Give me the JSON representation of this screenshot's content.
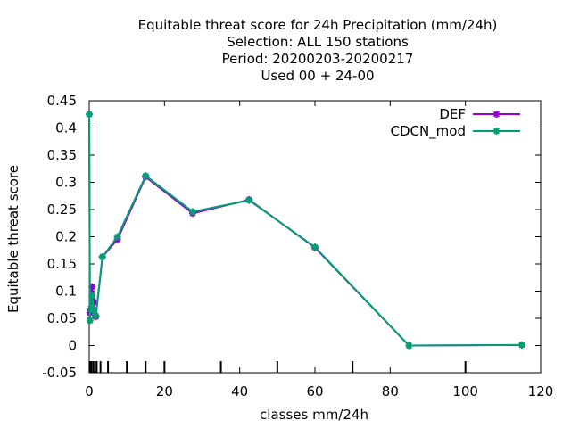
{
  "chart_data": {
    "type": "line",
    "title_lines": [
      "Equitable threat score  for 24h Precipitation (mm/24h)",
      "Selection: ALL    150 stations",
      "Period: 20200203-20200217",
      "Used  00 + 24-00"
    ],
    "xlabel": "classes mm/24h",
    "ylabel": "Equitable threat score",
    "xlim": [
      0,
      120
    ],
    "ylim": [
      -0.05,
      0.45
    ],
    "xticks": [
      0,
      20,
      40,
      60,
      80,
      100,
      120
    ],
    "xtick_labels": [
      "0",
      "20",
      "40",
      "60",
      "80",
      "100",
      "120"
    ],
    "yticks": [
      -0.05,
      0,
      0.05,
      0.1,
      0.15,
      0.2,
      0.25,
      0.3,
      0.35,
      0.4,
      0.45
    ],
    "ytick_labels": [
      "-0.05",
      "0",
      "0.05",
      "0.1",
      "0.15",
      "0.2",
      "0.25",
      "0.3",
      "0.35",
      "0.4",
      "0.45"
    ],
    "class_marks": [
      0.1,
      0.3,
      0.5,
      1,
      1.5,
      2,
      3,
      5,
      10,
      15,
      20,
      35,
      50,
      70,
      100
    ],
    "legend_position": "top-right",
    "grid": false,
    "series": [
      {
        "name": "DEF",
        "color": "#9400d3",
        "x": [
          0,
          0.2,
          0.4,
          0.75,
          1.25,
          1.75,
          3.5,
          7.5,
          15,
          27.5,
          42.5,
          60,
          85,
          115
        ],
        "y": [
          0.425,
          0.06,
          0.065,
          0.108,
          0.08,
          0.053,
          0.163,
          0.195,
          0.31,
          0.243,
          0.268,
          0.18,
          0.0,
          0.001
        ]
      },
      {
        "name": "CDCN_mod",
        "color": "#009e73",
        "x": [
          0,
          0.2,
          0.4,
          0.75,
          1.25,
          1.75,
          3.5,
          7.5,
          15,
          27.5,
          42.5,
          60,
          85,
          115
        ],
        "y": [
          0.425,
          0.046,
          0.068,
          0.092,
          0.065,
          0.055,
          0.163,
          0.2,
          0.312,
          0.246,
          0.267,
          0.181,
          0.0,
          0.001
        ]
      }
    ]
  }
}
